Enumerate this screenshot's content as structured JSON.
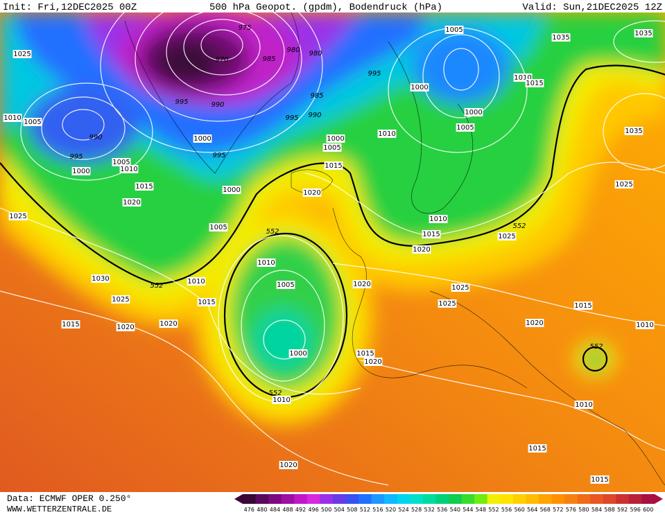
{
  "header": {
    "init": "Init: Fri,12DEC2025 00Z",
    "title": "500 hPa Geopot. (gpdm), Bodendruck (hPa)",
    "valid": "Valid: Sun,21DEC2025 12Z"
  },
  "map": {
    "isobar_labels": [
      "975",
      "970",
      "985",
      "980",
      "980",
      "995",
      "990",
      "1005",
      "1035",
      "1035",
      "1025",
      "1010",
      "1015",
      "1000",
      "995",
      "985",
      "995",
      "990",
      "1000",
      "1005",
      "1010",
      "1005",
      "990",
      "995",
      "1000",
      "1005",
      "1010",
      "1000",
      "995",
      "1000",
      "1005",
      "1010",
      "1015",
      "1035",
      "1015",
      "1020",
      "1000",
      "1020",
      "1025",
      "1025",
      "1005",
      "552",
      "552",
      "1010",
      "1015",
      "1020",
      "1025",
      "1010",
      "1030",
      "552",
      "1010",
      "1005",
      "1020",
      "1025",
      "1025",
      "1015",
      "1025",
      "1015",
      "1015",
      "1020",
      "1020",
      "1020",
      "1010",
      "1000",
      "1015",
      "1020",
      "552",
      "552",
      "1010",
      "1010",
      "1015",
      "1020",
      "1015"
    ]
  },
  "footer": {
    "source": "Data: ECMWF OPER 0.250°",
    "site": "WWW.WETTERZENTRALE.DE"
  },
  "colorbar": {
    "labels": [
      "476",
      "480",
      "484",
      "488",
      "492",
      "496",
      "500",
      "504",
      "508",
      "512",
      "516",
      "520",
      "524",
      "528",
      "532",
      "536",
      "540",
      "544",
      "548",
      "552",
      "556",
      "560",
      "564",
      "568",
      "572",
      "576",
      "580",
      "584",
      "588",
      "592",
      "596",
      "600"
    ],
    "colors": [
      "#3a0838",
      "#5a0a5c",
      "#7c0a80",
      "#9c10a4",
      "#c018c8",
      "#d828e0",
      "#9a30e8",
      "#6a3ae8",
      "#3a50f0",
      "#2070ff",
      "#1e98ff",
      "#10b8ff",
      "#00d4f0",
      "#00e0c8",
      "#00dca0",
      "#00d078",
      "#10cc50",
      "#38dc30",
      "#70ec10",
      "#f0f000",
      "#ffe400",
      "#ffd000",
      "#ffbc00",
      "#ffa400",
      "#ff9000",
      "#f88010",
      "#f06c18",
      "#e85820",
      "#dc4828",
      "#cc3030",
      "#b82038",
      "#a81040"
    ]
  }
}
